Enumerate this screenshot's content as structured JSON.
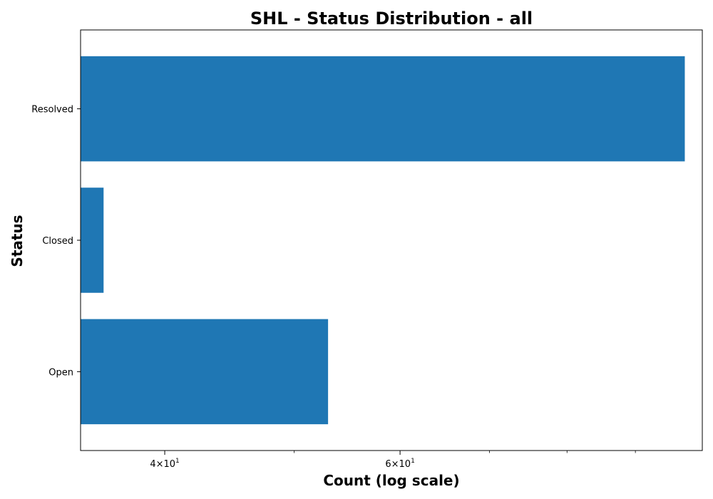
{
  "chart_data": {
    "type": "bar",
    "orientation": "horizontal",
    "title": "SHL - Status Distribution - all",
    "xlabel": "Count (log scale)",
    "ylabel": "Status",
    "x_scale": "log",
    "xlim": [
      34.6,
      101
    ],
    "categories": [
      "Resolved",
      "Closed",
      "Open"
    ],
    "series": [
      {
        "values": [
          98,
          36,
          53
        ]
      }
    ],
    "x_ticks": [
      {
        "value": 40,
        "base": "4",
        "exponent": "1"
      },
      {
        "value": 60,
        "base": "6",
        "exponent": "1"
      }
    ],
    "x_minor_ticks": [
      50,
      70,
      80,
      90
    ],
    "bar_color": "#1f77b4",
    "grid": false,
    "legend": "none"
  }
}
